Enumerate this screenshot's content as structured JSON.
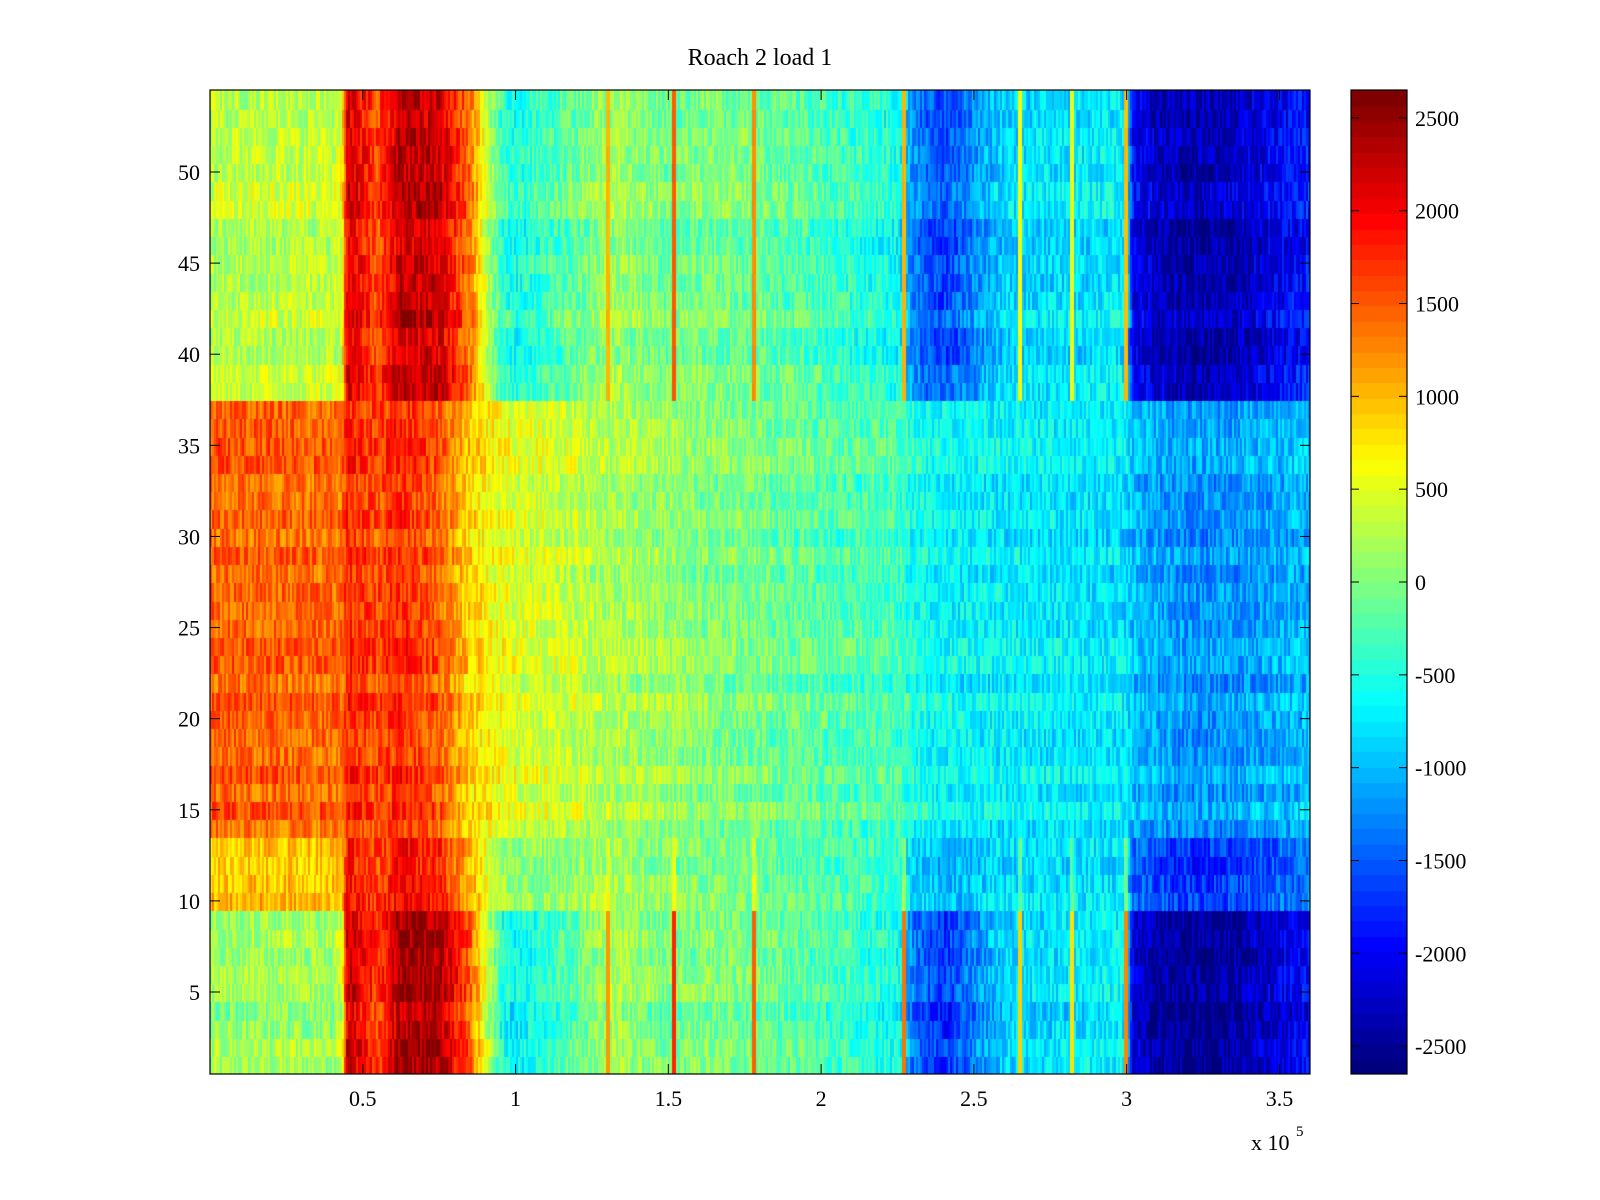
{
  "chart_data": {
    "type": "heatmap",
    "title": "Roach 2 load 1",
    "xlabel": "",
    "ylabel": "",
    "x_multiplier_label": {
      "base": "x 10",
      "exponent": "5"
    },
    "x_ticks": [
      0.5,
      1,
      1.5,
      2,
      2.5,
      3,
      3.5
    ],
    "x_tick_labels": [
      "0.5",
      "1",
      "1.5",
      "2",
      "2.5",
      "3",
      "3.5"
    ],
    "xlim": [
      0,
      3.6
    ],
    "y_ticks": [
      5,
      10,
      15,
      20,
      25,
      30,
      35,
      40,
      45,
      50
    ],
    "y_tick_labels": [
      "5",
      "10",
      "15",
      "20",
      "25",
      "30",
      "35",
      "40",
      "45",
      "50"
    ],
    "ylim": [
      0.5,
      54.5
    ],
    "colorbar": {
      "colormap": "jet",
      "ticks": [
        2500,
        2000,
        1500,
        1000,
        500,
        0,
        -500,
        -1000,
        -1500,
        -2000,
        -2500
      ],
      "tick_labels": [
        "2500",
        "2000",
        "1500",
        "1000",
        "500",
        "0",
        "-500",
        "-1000",
        "-1500",
        "-2000",
        "-2500"
      ],
      "clim": [
        -2650,
        2650
      ]
    },
    "rows": 54,
    "x_profile": {
      "x": [
        0.0,
        0.4,
        0.43,
        0.45,
        0.55,
        0.62,
        0.75,
        0.85,
        0.95,
        1.0,
        1.2,
        1.3,
        1.5,
        1.6,
        1.8,
        2.0,
        2.25,
        2.3,
        2.4,
        2.6,
        2.8,
        3.0,
        3.02,
        3.1,
        3.2,
        3.3,
        3.45,
        3.6
      ],
      "edge_rows": [
        100,
        150,
        300,
        2300,
        1600,
        2400,
        2400,
        1500,
        -500,
        -700,
        -200,
        200,
        -100,
        0,
        -100,
        -300,
        -600,
        -1400,
        -1800,
        -900,
        -800,
        -700,
        -2200,
        -2500,
        -2600,
        -2600,
        -2300,
        -2000
      ],
      "middle_rows": [
        1500,
        1450,
        1400,
        1800,
        1600,
        1800,
        1500,
        900,
        600,
        500,
        350,
        250,
        150,
        50,
        -50,
        -200,
        -300,
        -500,
        -650,
        -700,
        -750,
        -800,
        -1000,
        -1100,
        -1200,
        -1200,
        -1100,
        -1000
      ]
    },
    "vertical_streaks": [
      {
        "x": 1.3,
        "value": 1200
      },
      {
        "x": 1.52,
        "value": 1800
      },
      {
        "x": 1.78,
        "value": 1500
      },
      {
        "x": 2.27,
        "value": 1400
      },
      {
        "x": 2.65,
        "value": 900
      },
      {
        "x": 2.82,
        "value": 800
      },
      {
        "x": 3.0,
        "value": 1300
      }
    ]
  }
}
